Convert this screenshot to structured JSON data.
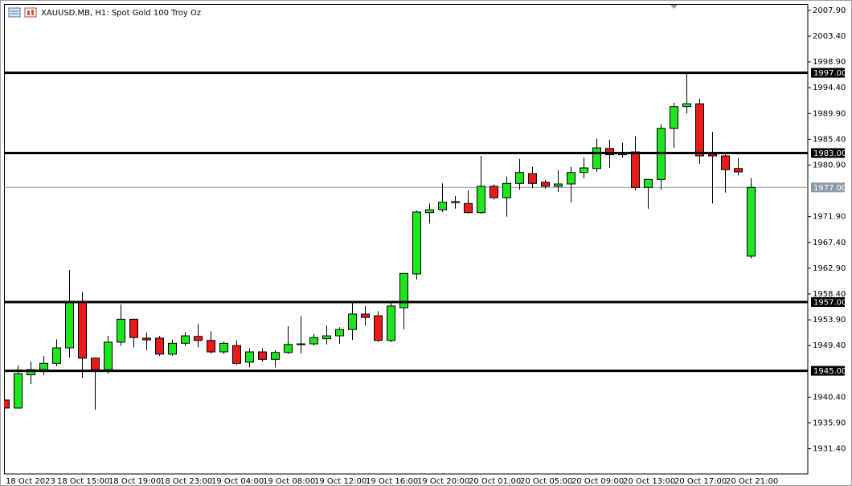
{
  "chart_data": {
    "type": "candlestick",
    "title": "XAUUSD.MB, H1:  Spot Gold 100 Troy Oz",
    "categories": [
      "18 Oct 2023",
      null,
      null,
      null,
      "18 Oct 15:00",
      null,
      null,
      null,
      "18 Oct 19:00",
      null,
      null,
      null,
      "18 Oct 23:00",
      null,
      null,
      null,
      "19 Oct 04:00",
      null,
      null,
      null,
      "19 Oct 08:00",
      null,
      null,
      null,
      "19 Oct 12:00",
      null,
      null,
      null,
      "19 Oct 16:00",
      null,
      null,
      null,
      "19 Oct 20:00",
      null,
      null,
      null,
      "20 Oct 01:00",
      null,
      null,
      null,
      "20 Oct 05:00",
      null,
      null,
      null,
      "20 Oct 09:00",
      null,
      null,
      null,
      "20 Oct 13:00",
      null,
      null,
      null,
      "20 Oct 17:00",
      null,
      null,
      null,
      "20 Oct 21:00",
      null,
      null
    ],
    "open": [
      1939.9,
      1938.5,
      1944.3,
      1945.2,
      1946.3,
      1949.0,
      1957.0,
      1947.2,
      1945.2,
      1950.0,
      1954.0,
      1950.7,
      1950.7,
      1947.9,
      1949.8,
      1951.0,
      1950.3,
      1948.3,
      1949.4,
      1946.5,
      1948.3,
      1947.0,
      1948.2,
      1949.6,
      1949.7,
      1950.6,
      1951.1,
      1952.2,
      1954.9,
      1954.6,
      1950.3,
      1956.0,
      1961.9,
      1972.6,
      1973.1,
      1974.5,
      1974.2,
      1972.6,
      1977.2,
      1975.2,
      1977.7,
      1979.4,
      1977.9,
      1977.2,
      1977.6,
      1979.6,
      1980.3,
      1983.8,
      1982.7,
      1983.2,
      1977.0,
      1978.4,
      1987.3,
      1991.1,
      1991.6,
      1982.8,
      1982.5,
      1980.3,
      1965.0
    ],
    "high": [
      1940.0,
      1945.9,
      1946.6,
      1947.6,
      1950.5,
      1962.6,
      1958.8,
      1947.3,
      1951.1,
      1956.6,
      1954.1,
      1951.7,
      1951.1,
      1950.4,
      1951.8,
      1953.2,
      1951.9,
      1950.1,
      1950.3,
      1948.9,
      1948.9,
      1948.6,
      1952.8,
      1954.5,
      1951.4,
      1952.9,
      1952.6,
      1956.8,
      1956.3,
      1955.4,
      1956.8,
      1962.0,
      1973.0,
      1974.2,
      1977.7,
      1975.5,
      1976.5,
      1982.5,
      1977.5,
      1978.9,
      1982.0,
      1980.6,
      1978.3,
      1980.0,
      1980.6,
      1982.2,
      1985.5,
      1985.3,
      1984.8,
      1985.9,
      1978.5,
      1988.0,
      1991.8,
      1996.8,
      1992.5,
      1986.7,
      1982.9,
      1982.1,
      1978.6
    ],
    "low": [
      1938.4,
      1938.4,
      1942.7,
      1944.3,
      1945.8,
      1947.3,
      1943.7,
      1938.2,
      1944.5,
      1949.4,
      1949.1,
      1948.6,
      1947.6,
      1947.6,
      1949.3,
      1949.1,
      1948.0,
      1947.9,
      1946.0,
      1945.6,
      1946.6,
      1945.6,
      1947.9,
      1948.0,
      1949.4,
      1949.6,
      1949.7,
      1950.4,
      1952.9,
      1950.0,
      1950.0,
      1952.2,
      1960.9,
      1970.7,
      1972.7,
      1973.3,
      1972.4,
      1972.4,
      1974.9,
      1971.9,
      1976.6,
      1976.9,
      1976.8,
      1976.2,
      1974.4,
      1978.6,
      1979.7,
      1980.4,
      1982.2,
      1976.5,
      1973.3,
      1976.6,
      1983.9,
      1989.9,
      1981.1,
      1974.2,
      1976.1,
      1979.1,
      1964.6
    ],
    "close": [
      1938.5,
      1944.5,
      1945.2,
      1946.3,
      1949.0,
      1957.0,
      1947.2,
      1945.2,
      1950.0,
      1954.0,
      1950.8,
      1950.4,
      1947.9,
      1949.8,
      1951.1,
      1950.3,
      1948.3,
      1949.8,
      1946.3,
      1948.3,
      1947.0,
      1948.2,
      1949.6,
      1949.7,
      1950.8,
      1951.1,
      1952.2,
      1954.9,
      1954.3,
      1950.3,
      1956.3,
      1962.0,
      1972.7,
      1973.1,
      1974.4,
      1974.4,
      1972.6,
      1977.2,
      1975.2,
      1977.7,
      1979.6,
      1977.7,
      1977.2,
      1977.6,
      1979.6,
      1980.4,
      1983.9,
      1982.7,
      1983.1,
      1977.0,
      1978.4,
      1987.3,
      1991.1,
      1991.6,
      1982.5,
      1982.5,
      1980.1,
      1979.7,
      1977.0
    ],
    "up_color": "#1ee61e",
    "down_color": "#ea1a1a",
    "ylim": [
      1927.0,
      2009.0
    ],
    "yticks": [
      {
        "value": 2007.9,
        "label": "2007.90"
      },
      {
        "value": 2003.4,
        "label": "2003.40"
      },
      {
        "value": 1998.9,
        "label": "1998.90"
      },
      {
        "value": 1994.4,
        "label": "1994.40"
      },
      {
        "value": 1989.9,
        "label": "1989.90"
      },
      {
        "value": 1985.4,
        "label": "1985.40"
      },
      {
        "value": 1980.9,
        "label": "1980.90"
      },
      {
        "value": 1971.9,
        "label": "1971.90"
      },
      {
        "value": 1967.4,
        "label": "1967.40"
      },
      {
        "value": 1962.9,
        "label": "1962.90"
      },
      {
        "value": 1958.4,
        "label": "1958.40"
      },
      {
        "value": 1953.9,
        "label": "1953.90"
      },
      {
        "value": 1949.4,
        "label": "1949.40"
      },
      {
        "value": 1940.4,
        "label": "1940.40"
      },
      {
        "value": 1935.9,
        "label": "1935.90"
      },
      {
        "value": 1931.4,
        "label": "1931.40"
      }
    ],
    "levels": [
      {
        "value": 1997,
        "label": "1997.00"
      },
      {
        "value": 1983,
        "label": "1983.00"
      },
      {
        "value": 1957,
        "label": "1957.00"
      },
      {
        "value": 1945,
        "label": "1945.00"
      }
    ],
    "level_color": "#000000",
    "price_line": {
      "value": 1977,
      "label": "1977.00"
    },
    "price_color": "#8c9aa6"
  }
}
